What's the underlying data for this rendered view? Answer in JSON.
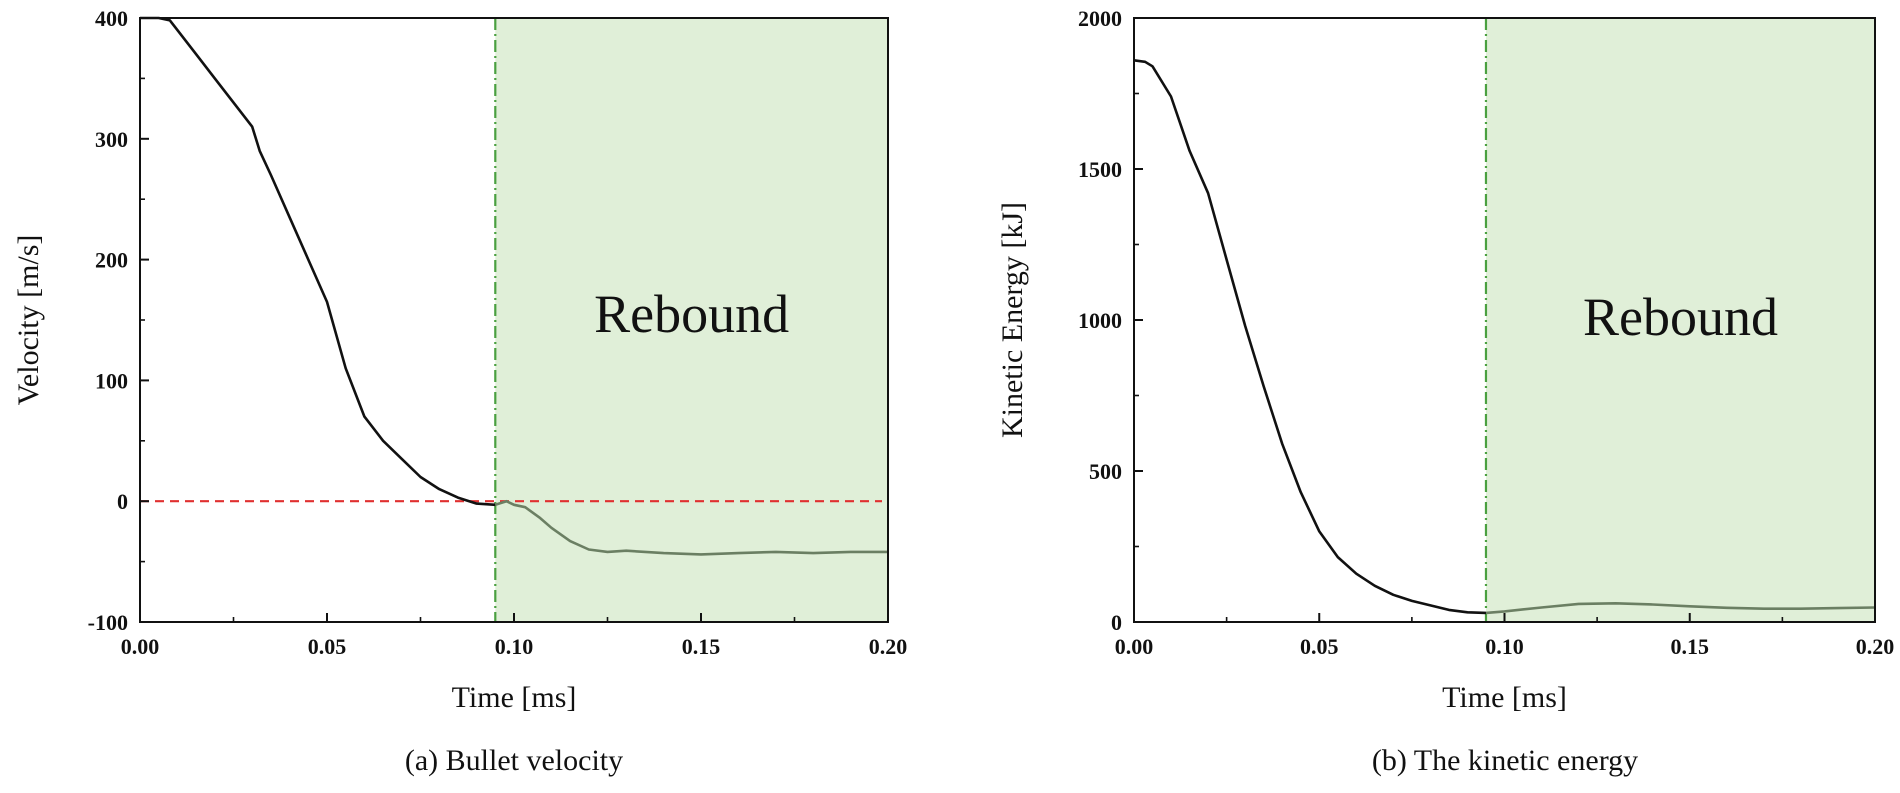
{
  "chart_data": [
    {
      "type": "line",
      "caption": "(a) Bullet velocity",
      "xlabel": "Time [ms]",
      "ylabel": "Velocity [m/s]",
      "xlim": [
        0,
        0.2
      ],
      "ylim": [
        -100,
        400
      ],
      "xticks": [
        0,
        0.05,
        0.1,
        0.15,
        0.2
      ],
      "xtick_labels": [
        "0.00",
        "0.05",
        "0.10",
        "0.15",
        "0.20"
      ],
      "yticks": [
        -100,
        0,
        100,
        200,
        300,
        400
      ],
      "ytick_labels": [
        "-100",
        "0",
        "100",
        "200",
        "300",
        "400"
      ],
      "region": {
        "label": "Rebound",
        "x_start": 0.095,
        "x_end": 0.2,
        "color": "#e0efd8"
      },
      "reference_line": {
        "y": 0,
        "color": "#e03030",
        "style": "dashed"
      },
      "boundary_line": {
        "x": 0.095,
        "color": "#4aa040",
        "style": "dash-dot"
      },
      "series": [
        {
          "name": "Bullet velocity",
          "color": "#111111",
          "x": [
            0,
            0.005,
            0.008,
            0.01,
            0.015,
            0.02,
            0.025,
            0.03,
            0.032,
            0.035,
            0.04,
            0.045,
            0.05,
            0.055,
            0.06,
            0.065,
            0.07,
            0.075,
            0.08,
            0.085,
            0.09,
            0.095
          ],
          "y": [
            400,
            400,
            398,
            390,
            370,
            350,
            330,
            310,
            290,
            270,
            235,
            200,
            165,
            110,
            70,
            50,
            35,
            20,
            10,
            3,
            -2,
            -3
          ]
        },
        {
          "name": "Rebound velocity",
          "color": "#6b7f63",
          "x": [
            0.095,
            0.098,
            0.1,
            0.103,
            0.107,
            0.11,
            0.115,
            0.12,
            0.125,
            0.13,
            0.14,
            0.15,
            0.16,
            0.17,
            0.18,
            0.19,
            0.2
          ],
          "y": [
            -3,
            0,
            -3,
            -5,
            -14,
            -22,
            -33,
            -40,
            -42,
            -41,
            -43,
            -44,
            -43,
            -42,
            -43,
            -42,
            -42
          ]
        }
      ]
    },
    {
      "type": "line",
      "caption": "(b) The kinetic energy",
      "xlabel": "Time [ms]",
      "ylabel": "Kinetic Energy [kJ]",
      "xlim": [
        0,
        0.2
      ],
      "ylim": [
        0,
        2000
      ],
      "xticks": [
        0,
        0.05,
        0.1,
        0.15,
        0.2
      ],
      "xtick_labels": [
        "0.00",
        "0.05",
        "0.10",
        "0.15",
        "0.20"
      ],
      "yticks": [
        0,
        500,
        1000,
        1500,
        2000
      ],
      "ytick_labels": [
        "0",
        "500",
        "1000",
        "1500",
        "2000"
      ],
      "region": {
        "label": "Rebound",
        "x_start": 0.095,
        "x_end": 0.2,
        "color": "#e0efd8"
      },
      "boundary_line": {
        "x": 0.095,
        "color": "#4aa040",
        "style": "dash-dot"
      },
      "series": [
        {
          "name": "Kinetic energy",
          "color": "#111111",
          "x": [
            0,
            0.003,
            0.005,
            0.01,
            0.015,
            0.02,
            0.025,
            0.03,
            0.035,
            0.04,
            0.045,
            0.05,
            0.055,
            0.06,
            0.065,
            0.07,
            0.075,
            0.08,
            0.085,
            0.09,
            0.095
          ],
          "y": [
            1860,
            1855,
            1840,
            1740,
            1560,
            1420,
            1200,
            980,
            780,
            590,
            430,
            300,
            215,
            160,
            120,
            90,
            70,
            55,
            40,
            32,
            30
          ]
        },
        {
          "name": "Rebound kinetic energy",
          "color": "#6b7f63",
          "x": [
            0.095,
            0.1,
            0.11,
            0.12,
            0.13,
            0.14,
            0.15,
            0.16,
            0.17,
            0.18,
            0.19,
            0.2
          ],
          "y": [
            30,
            35,
            48,
            60,
            62,
            58,
            52,
            47,
            44,
            44,
            46,
            48
          ]
        }
      ]
    }
  ]
}
